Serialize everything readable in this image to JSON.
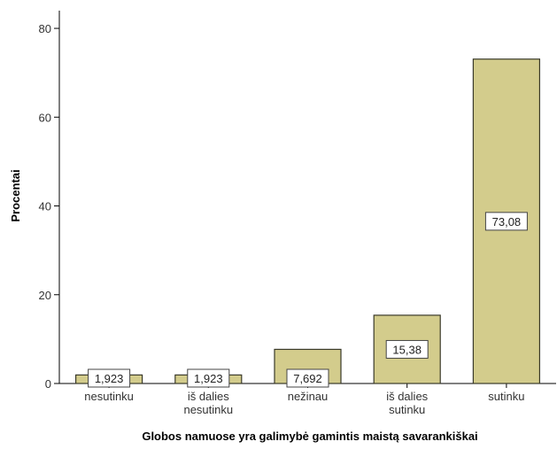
{
  "chart_data": {
    "type": "bar",
    "title": "",
    "xlabel": "Globos namuose yra galimybė gamintis maistą savarankiškai",
    "ylabel": "Procentai",
    "ylim": [
      0,
      84
    ],
    "yticks": [
      0,
      20,
      40,
      60,
      80
    ],
    "categories": [
      [
        "nesutinku"
      ],
      [
        "iš dalies",
        "nesutinku"
      ],
      [
        "nežinau"
      ],
      [
        "iš dalies",
        "sutinku"
      ],
      [
        "sutinku"
      ]
    ],
    "values": [
      1.923,
      1.923,
      7.692,
      15.38,
      73.08
    ],
    "data_labels": [
      "1,923",
      "1,923",
      "7,692",
      "15,38",
      "73,08"
    ],
    "bar_color": "#d3cc8c",
    "bar_edge_color": "#3a3a2a",
    "grid": false,
    "legend": false
  }
}
